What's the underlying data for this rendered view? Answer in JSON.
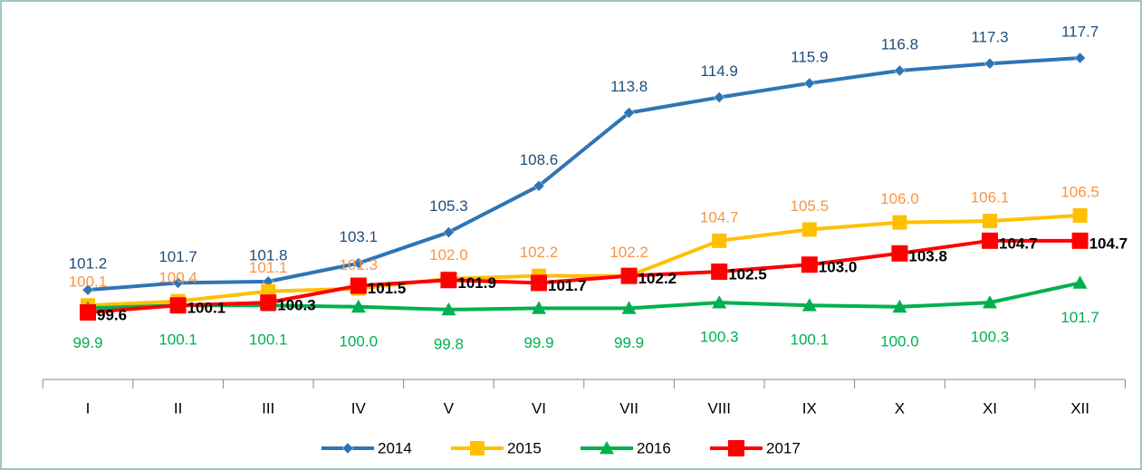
{
  "chart_data": {
    "type": "line",
    "categories": [
      "I",
      "II",
      "III",
      "IV",
      "V",
      "VI",
      "VII",
      "VIII",
      "IX",
      "X",
      "XI",
      "XII"
    ],
    "series": [
      {
        "name": "2014",
        "color": "#2e75b6",
        "marker": "diamond",
        "values": [
          101.2,
          101.7,
          101.8,
          103.1,
          105.3,
          108.6,
          113.8,
          114.9,
          115.9,
          116.8,
          117.3,
          117.7
        ],
        "value_labels": [
          "101.2",
          "101.7",
          "101.8",
          "103.1",
          "105.3",
          "108.6",
          "113.8",
          "114.9",
          "115.9",
          "116.8",
          "117.3",
          "117.7"
        ]
      },
      {
        "name": "2015",
        "color": "#ffc000",
        "marker": "square",
        "values": [
          100.1,
          100.4,
          101.1,
          101.3,
          102.0,
          102.2,
          102.2,
          104.7,
          105.5,
          106.0,
          106.1,
          106.5
        ],
        "value_labels": [
          "100.1",
          "100.4",
          "101.1",
          "101.3",
          "102.0",
          "102.2",
          "102.2",
          "104.7",
          "105.5",
          "106.0",
          "106.1",
          "106.5"
        ]
      },
      {
        "name": "2016",
        "color": "#00b050",
        "marker": "triangle",
        "values": [
          99.9,
          100.1,
          100.1,
          100.0,
          99.8,
          99.9,
          99.9,
          100.3,
          100.1,
          100.0,
          100.3,
          101.7
        ],
        "value_labels": [
          "99.9",
          "100.1",
          "100.1",
          "100.0",
          "99.8",
          "99.9",
          "99.9",
          "100.3",
          "100.1",
          "100.0",
          "100.3",
          "101.7"
        ]
      },
      {
        "name": "2017",
        "color": "#ff0000",
        "marker": "square",
        "values": [
          99.6,
          100.1,
          100.3,
          101.5,
          101.9,
          101.7,
          102.2,
          102.5,
          103.0,
          103.8,
          104.7,
          104.7
        ],
        "value_labels": [
          "99.6",
          "100.1",
          "100.3",
          "101.5",
          "101.9",
          "101.7",
          "102.2",
          "102.5",
          "103.0",
          "103.8",
          "104.7",
          "104.7"
        ]
      }
    ],
    "legend": "bottom"
  }
}
